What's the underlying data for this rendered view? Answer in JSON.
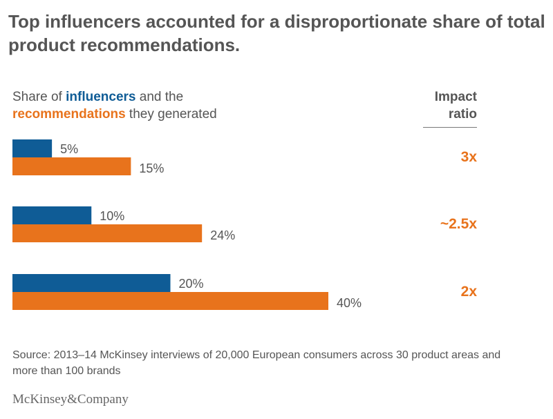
{
  "title": "Top influencers accounted for a disproportionate share of total product recommendations.",
  "legend": {
    "prefix": "Share of ",
    "influencers": "influencers",
    "middle": " and the",
    "recommendations": "recommendations",
    "suffix": " they generated"
  },
  "ratio_header": {
    "line1": "Impact",
    "line2": "ratio"
  },
  "source": "Source: 2013–14 McKinsey interviews of 20,000 European consumers across 30 product areas and more than 100 brands",
  "logo": "McKinsey&Company",
  "colors": {
    "influencers": "#0f5c96",
    "recommendations": "#e8731c",
    "text": "#555555"
  },
  "chart_data": {
    "type": "bar",
    "orientation": "horizontal",
    "groups": [
      {
        "influencers": 5,
        "recommendations": 15,
        "influencers_label": "5%",
        "recommendations_label": "15%",
        "ratio": "3x"
      },
      {
        "influencers": 10,
        "recommendations": 24,
        "influencers_label": "10%",
        "recommendations_label": "24%",
        "ratio": "~2.5x"
      },
      {
        "influencers": 20,
        "recommendations": 40,
        "influencers_label": "20%",
        "recommendations_label": "40%",
        "ratio": "2x"
      }
    ],
    "series": [
      {
        "name": "influencers",
        "values": [
          5,
          10,
          20
        ]
      },
      {
        "name": "recommendations",
        "values": [
          15,
          24,
          40
        ]
      }
    ],
    "xlim": [
      0,
      40
    ],
    "grid": false
  }
}
